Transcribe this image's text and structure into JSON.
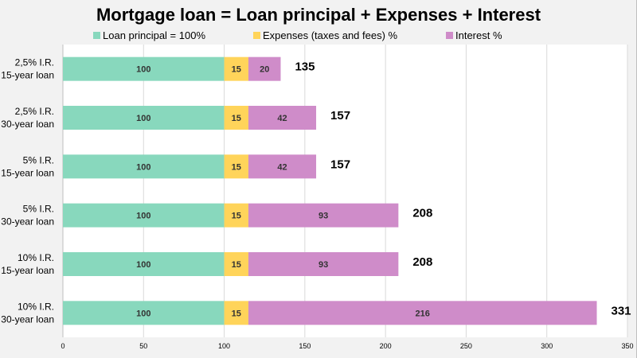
{
  "chart_data": {
    "type": "bar",
    "orientation": "horizontal",
    "stacked": true,
    "title": "Mortgage loan = Loan principal + Expenses + Interest",
    "categories": [
      [
        "2,5% I.R.",
        "15-year loan"
      ],
      [
        "2,5% I.R.",
        "30-year loan"
      ],
      [
        "5% I.R.",
        "15-year loan"
      ],
      [
        "5% I.R.",
        "30-year loan"
      ],
      [
        "10% I.R.",
        "15-year loan"
      ],
      [
        "10% I.R.",
        "30-year loan"
      ]
    ],
    "series": [
      {
        "name": "Loan principal = 100%",
        "color": "#88d8bd",
        "values": [
          100,
          100,
          100,
          100,
          100,
          100
        ]
      },
      {
        "name": "Expenses (taxes and fees) %",
        "color": "#ffd45a",
        "values": [
          15,
          15,
          15,
          15,
          15,
          15
        ]
      },
      {
        "name": "Interest %",
        "color": "#cf8cc9",
        "values": [
          20,
          42,
          42,
          93,
          93,
          216
        ]
      }
    ],
    "totals": [
      135,
      157,
      157,
      208,
      208,
      331
    ],
    "xlim": [
      0,
      350
    ],
    "xticks": [
      0,
      50,
      100,
      150,
      200,
      250,
      300,
      350
    ],
    "grid": true,
    "legend": "top-center"
  }
}
